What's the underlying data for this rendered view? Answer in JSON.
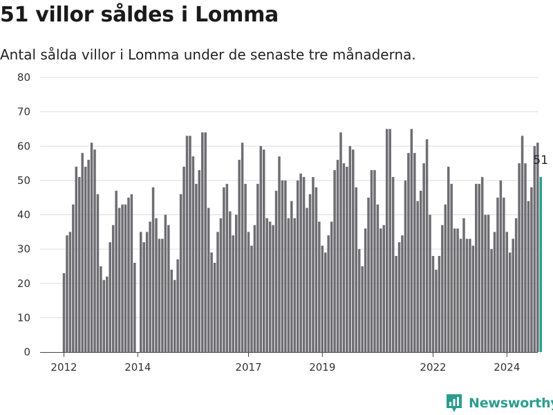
{
  "header": {
    "title": "51 villor såldes i Lomma",
    "subtitle": "Antal sålda villor i Lomma under de senaste tre månaderna."
  },
  "brand": {
    "name": "Newsworthy",
    "icon": "newsworthy-logo-icon",
    "color": "#2a9d8f"
  },
  "chart_data": {
    "type": "bar",
    "title": "51 villor såldes i Lomma",
    "subtitle": "Antal sålda villor i Lomma under de senaste tre månaderna.",
    "xlabel": "",
    "ylabel": "",
    "ylim": [
      0,
      80
    ],
    "yticks": [
      0,
      10,
      20,
      30,
      40,
      50,
      60,
      70,
      80
    ],
    "xticks": [
      {
        "label": "2012",
        "date": "2012-01"
      },
      {
        "label": "2014",
        "date": "2014-01"
      },
      {
        "label": "2017",
        "date": "2017-01"
      },
      {
        "label": "2019",
        "date": "2019-01"
      },
      {
        "label": "2022",
        "date": "2022-01"
      },
      {
        "label": "2024",
        "date": "2024-01"
      }
    ],
    "grid": true,
    "bar_color": "#6d6d72",
    "highlight_color": "#2a9d8f",
    "start": "2012-01",
    "values": [
      23,
      34,
      35,
      43,
      54,
      51,
      58,
      54,
      56,
      61,
      59,
      46,
      25,
      21,
      22,
      32,
      37,
      47,
      42,
      43,
      43,
      45,
      46,
      26,
      null,
      35,
      32,
      35,
      38,
      48,
      39,
      33,
      33,
      40,
      37,
      24,
      21,
      27,
      46,
      54,
      63,
      63,
      57,
      49,
      53,
      64,
      64,
      42,
      29,
      26,
      35,
      39,
      48,
      49,
      41,
      34,
      40,
      56,
      61,
      49,
      35,
      31,
      37,
      49,
      60,
      59,
      39,
      38,
      37,
      47,
      57,
      50,
      50,
      39,
      44,
      39,
      50,
      52,
      51,
      42,
      46,
      51,
      48,
      38,
      31,
      29,
      34,
      38,
      53,
      56,
      64,
      55,
      54,
      60,
      59,
      48,
      30,
      25,
      36,
      45,
      53,
      53,
      43,
      36,
      37,
      65,
      65,
      51,
      28,
      32,
      34,
      50,
      58,
      65,
      58,
      44,
      47,
      55,
      62,
      40,
      28,
      24,
      28,
      37,
      43,
      54,
      49,
      36,
      36,
      33,
      39,
      33,
      33,
      31,
      49,
      49,
      51,
      40,
      40,
      30,
      35,
      45,
      50,
      45,
      35,
      29,
      33,
      39,
      55,
      63,
      55,
      44,
      48,
      60,
      61,
      51
    ],
    "annotation": {
      "label": "51",
      "value": 51,
      "date": "2024-12"
    }
  }
}
